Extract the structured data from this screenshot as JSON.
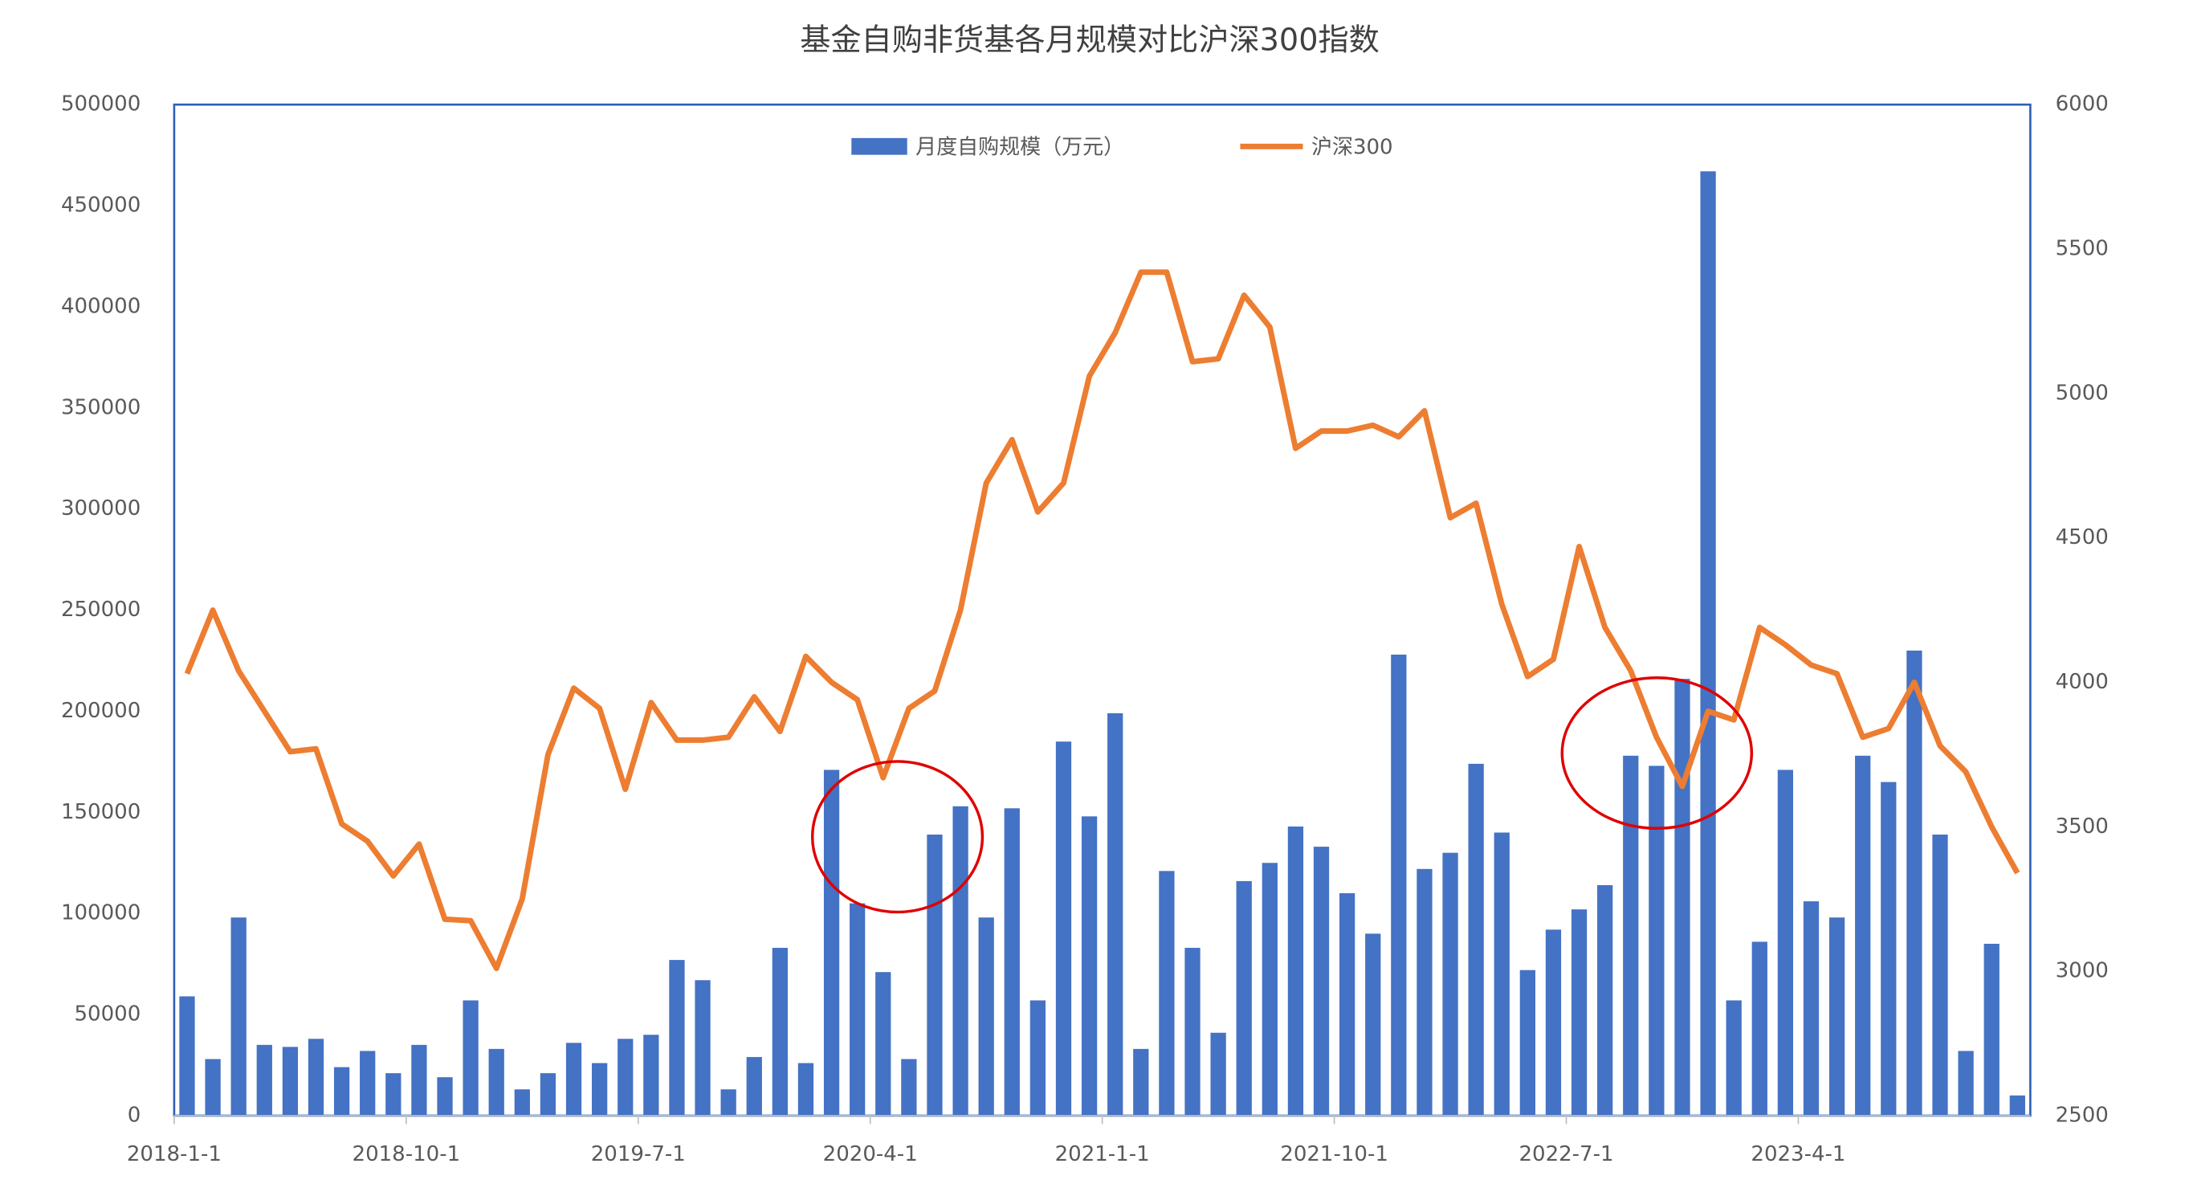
{
  "chart_data": {
    "type": "bar_line",
    "title": "基金自购非货基各月规模对比沪深300指数",
    "categories": [
      "2018-1-1",
      null,
      null,
      null,
      null,
      null,
      null,
      null,
      null,
      "2018-10-1",
      null,
      null,
      null,
      null,
      null,
      null,
      null,
      null,
      "2019-7-1",
      null,
      null,
      null,
      null,
      null,
      null,
      null,
      null,
      "2020-4-1",
      null,
      null,
      null,
      null,
      null,
      null,
      null,
      null,
      "2021-1-1",
      null,
      null,
      null,
      null,
      null,
      null,
      null,
      null,
      "2021-10-1",
      null,
      null,
      null,
      null,
      null,
      null,
      null,
      null,
      "2022-7-1",
      null,
      null,
      null,
      null,
      null,
      null,
      null,
      null,
      "2023-4-1",
      null,
      null,
      null,
      null,
      null,
      null,
      null,
      null
    ],
    "series": [
      {
        "name": "月度自购规模（万元）",
        "type": "bar",
        "color": "#4472c4",
        "values": [
          59000,
          28000,
          98000,
          35000,
          34000,
          38000,
          24000,
          32000,
          21000,
          35000,
          19000,
          57000,
          33000,
          13000,
          21000,
          36000,
          26000,
          38000,
          40000,
          77000,
          67000,
          13000,
          29000,
          83000,
          26000,
          171000,
          105000,
          71000,
          28000,
          139000,
          153000,
          98000,
          152000,
          57000,
          185000,
          148000,
          199000,
          33000,
          121000,
          83000,
          41000,
          116000,
          125000,
          143000,
          133000,
          110000,
          90000,
          228000,
          122000,
          130000,
          174000,
          140000,
          72000,
          92000,
          102000,
          114000,
          178000,
          173000,
          216000,
          467000,
          57000,
          86000,
          171000,
          106000,
          98000,
          178000,
          165000,
          230000,
          139000,
          32000,
          85000,
          10000
        ]
      },
      {
        "name": "沪深300",
        "type": "line",
        "axis": "y2",
        "color": "#ed7d31",
        "values": [
          4030,
          4250,
          4040,
          3900,
          3760,
          3770,
          3510,
          3450,
          3330,
          3440,
          3180,
          3175,
          3010,
          3250,
          3750,
          3980,
          3910,
          3630,
          3930,
          3800,
          3800,
          3810,
          3950,
          3830,
          4090,
          4000,
          3940,
          3670,
          3910,
          3970,
          4250,
          4690,
          4840,
          4590,
          4690,
          5060,
          5210,
          5420,
          5420,
          5110,
          5120,
          5340,
          5230,
          4810,
          4870,
          4870,
          4890,
          4850,
          4940,
          4570,
          4620,
          4270,
          4020,
          4080,
          4470,
          4190,
          4040,
          3810,
          3640,
          3900,
          3870,
          4190,
          4130,
          4060,
          4030,
          3810,
          3840,
          4000,
          3780,
          3690,
          3500,
          3340
        ]
      }
    ],
    "ylim": [
      0,
      500000
    ],
    "yticks": [
      0,
      50000,
      100000,
      150000,
      200000,
      250000,
      300000,
      350000,
      400000,
      450000,
      500000
    ],
    "y2lim": [
      2500,
      6000
    ],
    "y2ticks": [
      2500,
      3000,
      3500,
      4000,
      4500,
      5000,
      5500,
      6000
    ],
    "legend": "top"
  }
}
